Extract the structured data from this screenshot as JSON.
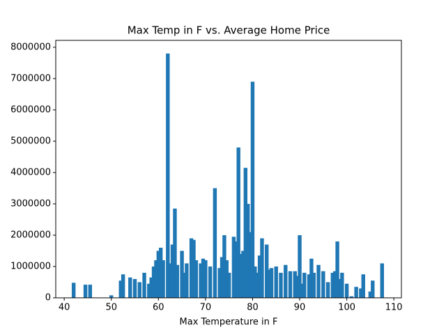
{
  "chart_data": {
    "type": "bar",
    "title": "Max Temp in F vs. Average Home Price",
    "xlabel": "Max Temperature in F",
    "color": "#1f77b4",
    "x": [
      42,
      44.5,
      45.5,
      50,
      52,
      52.5,
      54,
      55,
      56,
      57,
      58,
      58.5,
      59,
      59.5,
      60,
      60.5,
      61,
      62,
      62.5,
      63,
      63.5,
      64,
      65,
      65.5,
      66,
      67,
      67.5,
      68,
      69,
      69.5,
      70,
      71,
      72,
      73,
      73.5,
      74,
      74.5,
      75,
      76,
      76.5,
      77,
      77.5,
      78,
      78.5,
      79,
      79.5,
      80,
      80.5,
      81,
      81.5,
      82,
      83,
      83.5,
      84,
      85,
      86,
      87,
      88,
      89,
      89.5,
      90,
      90.5,
      91,
      92,
      92.5,
      93,
      94,
      95,
      96,
      97,
      97.5,
      98,
      98.5,
      99,
      100,
      101,
      102,
      103,
      103.5,
      105,
      105.5,
      107.5
    ],
    "values": [
      480000,
      420000,
      420000,
      80000,
      550000,
      750000,
      650000,
      600000,
      500000,
      800000,
      450000,
      650000,
      1000000,
      1200000,
      1500000,
      1600000,
      1200000,
      7800000,
      1100000,
      1700000,
      2850000,
      1050000,
      1500000,
      800000,
      1100000,
      1900000,
      1850000,
      1200000,
      1100000,
      1250000,
      1200000,
      1000000,
      3500000,
      950000,
      1300000,
      2000000,
      1200000,
      800000,
      1950000,
      1800000,
      4800000,
      1400000,
      1500000,
      4150000,
      3000000,
      2100000,
      6900000,
      1000000,
      800000,
      1350000,
      1900000,
      1700000,
      900000,
      950000,
      1000000,
      800000,
      1050000,
      850000,
      850000,
      700000,
      2000000,
      450000,
      800000,
      750000,
      1250000,
      800000,
      1050000,
      850000,
      500000,
      800000,
      850000,
      1800000,
      600000,
      800000,
      450000,
      50000,
      350000,
      300000,
      750000,
      200000,
      550000,
      1100000
    ],
    "xlim": [
      38.2,
      111.6
    ],
    "xticks": [
      40,
      50,
      60,
      70,
      80,
      90,
      100,
      110
    ],
    "ylim": [
      0,
      8220000
    ],
    "yticks": [
      0,
      1000000,
      2000000,
      3000000,
      4000000,
      5000000,
      6000000,
      7000000,
      8000000
    ]
  }
}
